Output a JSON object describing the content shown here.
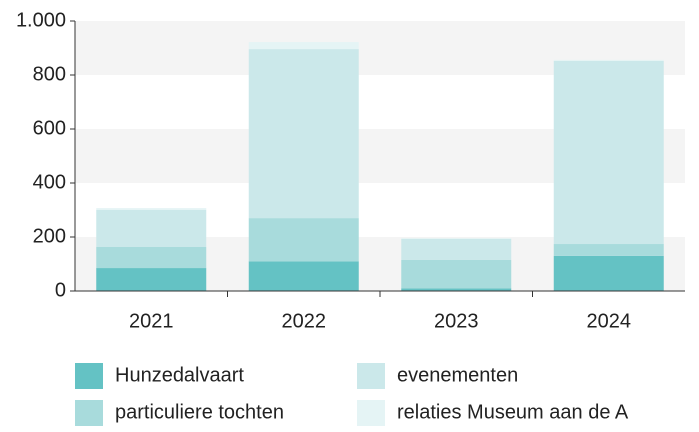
{
  "chart_data": {
    "type": "bar",
    "stacked": true,
    "categories": [
      "2021",
      "2022",
      "2023",
      "2024"
    ],
    "series": [
      {
        "name": "Hunzedalvaart",
        "color": "#64c2c4",
        "values": [
          85,
          110,
          10,
          130
        ]
      },
      {
        "name": "particuliere tochten",
        "color": "#a8dbdc",
        "values": [
          78,
          160,
          105,
          44
        ]
      },
      {
        "name": "evenementen",
        "color": "#cbe8ea",
        "values": [
          137,
          626,
          78,
          678
        ]
      },
      {
        "name": "relaties Museum aan de A",
        "color": "#e5f4f5",
        "values": [
          7,
          26,
          3,
          4
        ]
      }
    ],
    "ylim": [
      0,
      1000
    ],
    "yticks": [
      0,
      200,
      400,
      600,
      800,
      {
        "value": 1000,
        "label": "1.000"
      }
    ],
    "grid": "bands",
    "legend": "bottom"
  }
}
